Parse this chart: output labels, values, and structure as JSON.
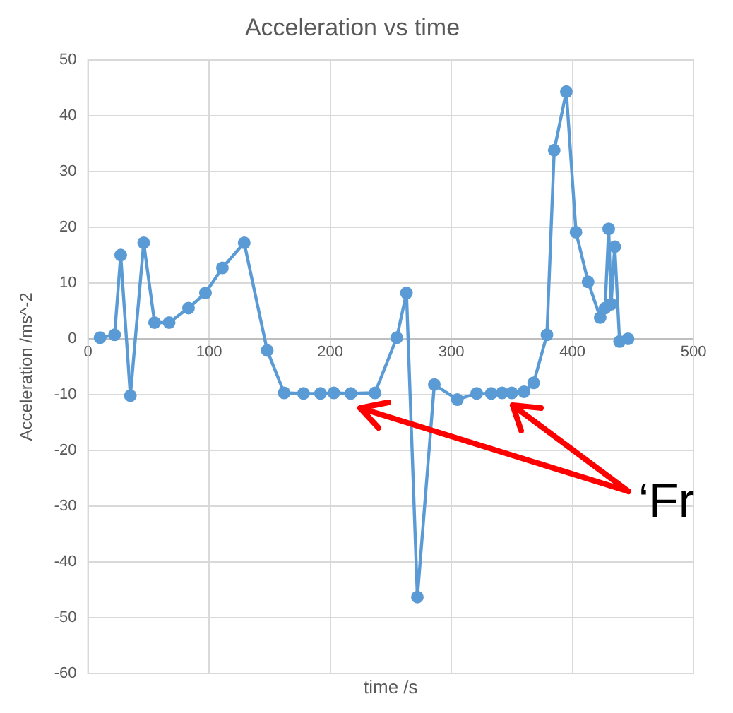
{
  "chart_data": {
    "type": "line",
    "title": "Acceleration vs time",
    "xlabel": "time /s",
    "ylabel": "Acceleration /ms^-2",
    "x": [
      10,
      22,
      27,
      35,
      46,
      55,
      67,
      83,
      97,
      111,
      129,
      148,
      162,
      178,
      192,
      203,
      217,
      237,
      255,
      263,
      272,
      286,
      305,
      321,
      333,
      342,
      350,
      360,
      368,
      379,
      385,
      395,
      403,
      413,
      423,
      427,
      430,
      432,
      435,
      439,
      446
    ],
    "series": [
      {
        "color": "#5b9bd5",
        "values": [
          0.2,
          0.7,
          15,
          -10.2,
          17.2,
          2.9,
          2.9,
          5.5,
          8.2,
          12.7,
          17.2,
          -2.1,
          -9.7,
          -9.8,
          -9.8,
          -9.7,
          -9.8,
          -9.7,
          0.2,
          8.2,
          -46.3,
          -8.2,
          -10.9,
          -9.8,
          -9.8,
          -9.7,
          -9.7,
          -9.5,
          -7.9,
          0.7,
          33.8,
          44.3,
          19.1,
          10.2,
          3.8,
          5.5,
          19.7,
          6.2,
          16.5,
          -0.5,
          0
        ]
      }
    ],
    "xlim": [
      0,
      500
    ],
    "xticks": [
      0,
      100,
      200,
      300,
      400,
      500
    ],
    "ylim": [
      -60,
      50
    ],
    "yticks": [
      -60,
      -50,
      -40,
      -30,
      -20,
      -10,
      0,
      10,
      20,
      30,
      40,
      50
    ],
    "grid": true,
    "legend": false,
    "marker": "circle",
    "line_style": "solid",
    "annotations": [
      "‘Fr"
    ]
  }
}
